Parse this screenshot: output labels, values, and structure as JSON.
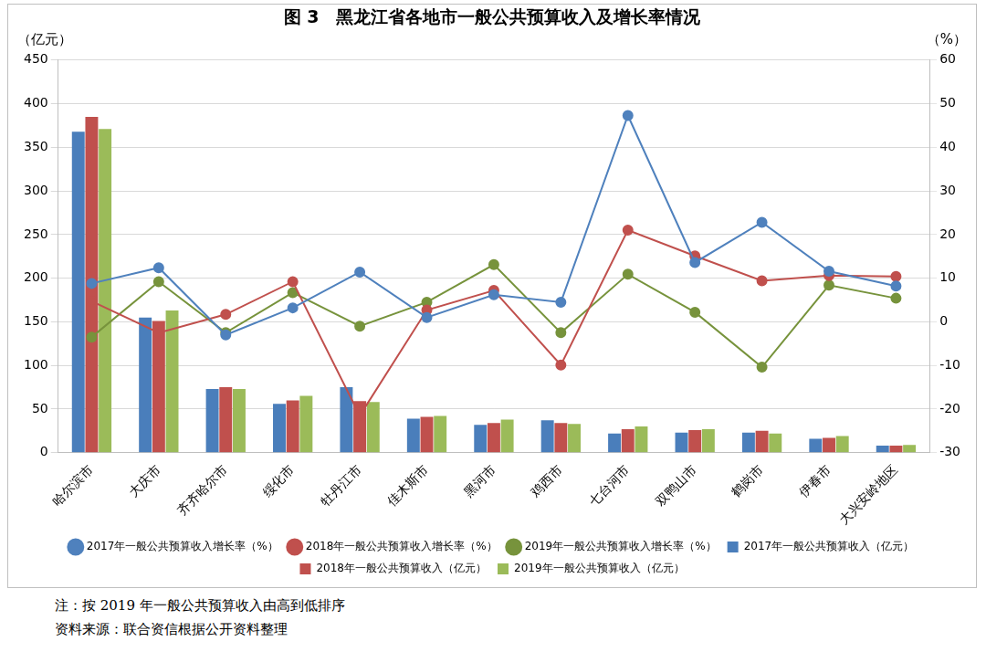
{
  "chart_data": {
    "type": "bar",
    "title": "图 3　黑龙江省各地市一般公共预算收入及增长率情况",
    "y_label": "（亿元）",
    "y2_label": "（%）",
    "notes": [
      "注：按 2019 年一般公共预算收入由高到低排序",
      "资料来源：联合资信根据公开资料整理"
    ],
    "categories": [
      "哈尔滨市",
      "大庆市",
      "齐齐哈尔市",
      "绥化市",
      "牡丹江市",
      "佳木斯市",
      "黑河市",
      "鸡西市",
      "七台河市",
      "双鸭山市",
      "鹤岗市",
      "伊春市",
      "大兴安岭地区"
    ],
    "series": [
      {
        "name": "2017年一般公共预算收入（亿元）",
        "type": "bar",
        "color": "#4a7ebb",
        "values": [
          368,
          155,
          73,
          56,
          75,
          39,
          32,
          37,
          22,
          23,
          23,
          16,
          8
        ]
      },
      {
        "name": "2018年一般公共预算收入（亿元）",
        "type": "bar",
        "color": "#c0504d",
        "values": [
          385,
          151,
          75,
          60,
          59,
          41,
          34,
          34,
          27,
          26,
          25,
          17,
          8
        ]
      },
      {
        "name": "2019年一般公共预算收入（亿元）",
        "type": "bar",
        "color": "#9bbb59",
        "values": [
          371,
          163,
          73,
          65,
          58,
          42,
          38,
          33,
          30,
          27,
          22,
          19,
          9
        ]
      },
      {
        "name": "2017年一般公共预算收入增长率（%）",
        "type": "line",
        "axis": "y2",
        "marker": "circle",
        "color": "#4f81bd",
        "values": [
          8.8,
          12.4,
          -3.0,
          3.2,
          11.4,
          1.0,
          6.2,
          4.5,
          47.3,
          13.6,
          22.8,
          11.6,
          8.2
        ]
      },
      {
        "name": "2018年一般公共预算收入增长率（%）",
        "type": "line",
        "axis": "y2",
        "marker": "circle",
        "color": "#c0504d",
        "values": [
          4.7,
          -2.5,
          1.7,
          9.2,
          -21.5,
          2.7,
          7.2,
          -9.9,
          21.0,
          15.1,
          9.4,
          10.6,
          10.4
        ]
      },
      {
        "name": "2019年一般公共预算收入增长率（%）",
        "type": "line",
        "axis": "y2",
        "marker": "circle",
        "color": "#77933c",
        "values": [
          -3.5,
          9.2,
          -2.5,
          6.7,
          -1.0,
          4.5,
          13.1,
          -2.5,
          10.9,
          2.2,
          -10.4,
          8.4,
          5.4
        ]
      }
    ],
    "ylim": [
      0,
      450
    ],
    "yticks": [
      0,
      50,
      100,
      150,
      200,
      250,
      300,
      350,
      400,
      450
    ],
    "y2lim": [
      -30,
      60
    ],
    "y2ticks": [
      -30,
      -20,
      -10,
      0,
      10,
      20,
      30,
      40,
      50,
      60
    ],
    "grid": true,
    "legend": "bottom"
  }
}
